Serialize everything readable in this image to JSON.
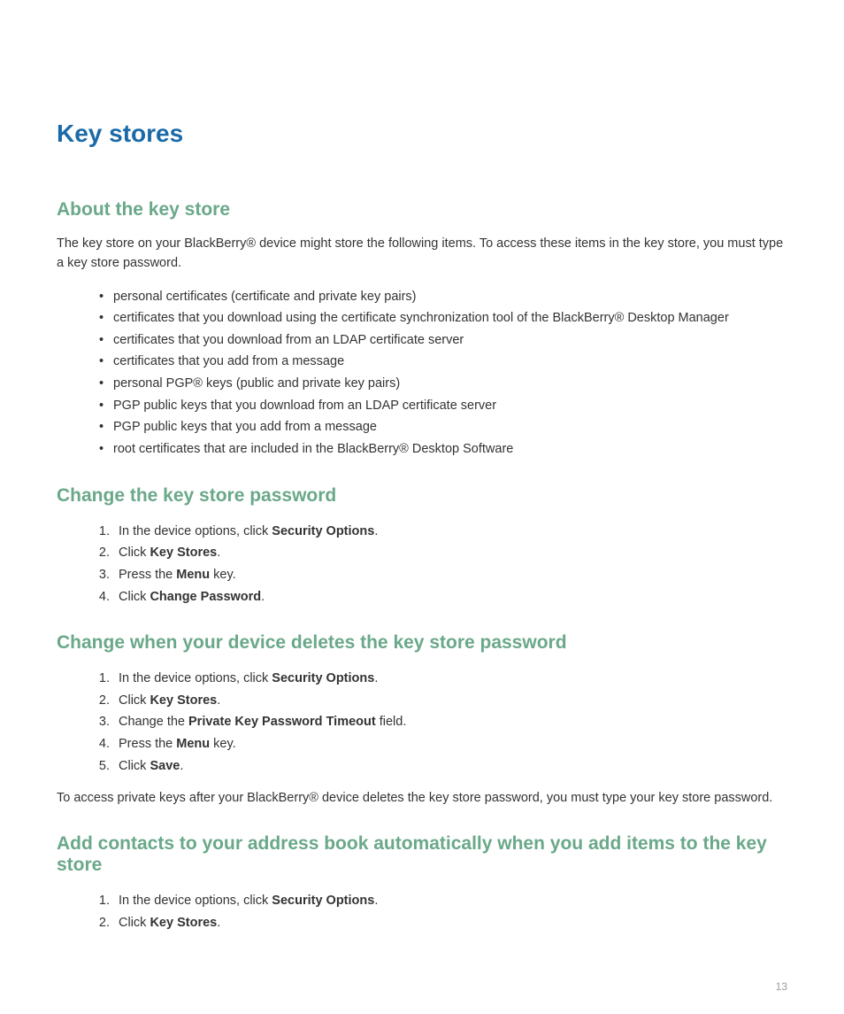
{
  "page": {
    "title": "Key stores",
    "number": "13",
    "title_color": "#1a6aa8",
    "subheading_color": "#6aa889",
    "body_color": "#333333",
    "page_number_color": "#9c9c9c",
    "background_color": "#ffffff",
    "h1_fontsize": 28,
    "h2_fontsize": 21,
    "body_fontsize": 14.5
  },
  "sections": {
    "about": {
      "heading": "About the key store",
      "intro": "The key store on your BlackBerry® device might store the following items. To access these items in the key store, you must type a key store password.",
      "bullets": [
        "personal certificates (certificate and private key pairs)",
        "certificates that you download using the certificate synchronization tool of the BlackBerry® Desktop Manager",
        "certificates that you download from an LDAP certificate server",
        "certificates that you add from a message",
        "personal PGP® keys (public and private key pairs)",
        "PGP public keys that you download from an LDAP certificate server",
        "PGP public keys that you add from a message",
        "root certificates that are included in the BlackBerry® Desktop Software"
      ]
    },
    "change_password": {
      "heading": "Change the key store password",
      "steps": {
        "s1_pre": "In the device options, click ",
        "s1_bold": "Security Options",
        "s1_post": ".",
        "s2_pre": "Click ",
        "s2_bold": "Key Stores",
        "s2_post": ".",
        "s3_pre": "Press the ",
        "s3_bold": "Menu",
        "s3_post": " key.",
        "s4_pre": "Click ",
        "s4_bold": "Change Password",
        "s4_post": "."
      }
    },
    "change_when_deletes": {
      "heading": "Change when your device deletes the key store password",
      "steps": {
        "s1_pre": "In the device options, click ",
        "s1_bold": "Security Options",
        "s1_post": ".",
        "s2_pre": "Click ",
        "s2_bold": "Key Stores",
        "s2_post": ".",
        "s3_pre": "Change the ",
        "s3_bold": "Private Key Password Timeout",
        "s3_post": " field.",
        "s4_pre": "Press the ",
        "s4_bold": "Menu",
        "s4_post": " key.",
        "s5_pre": "Click ",
        "s5_bold": "Save",
        "s5_post": "."
      },
      "note": "To access private keys after your BlackBerry® device deletes the key store password, you must type your key store password."
    },
    "add_contacts": {
      "heading": "Add contacts to your address book automatically when you add items to the key store",
      "steps": {
        "s1_pre": "In the device options, click ",
        "s1_bold": "Security Options",
        "s1_post": ".",
        "s2_pre": "Click ",
        "s2_bold": "Key Stores",
        "s2_post": "."
      }
    }
  }
}
